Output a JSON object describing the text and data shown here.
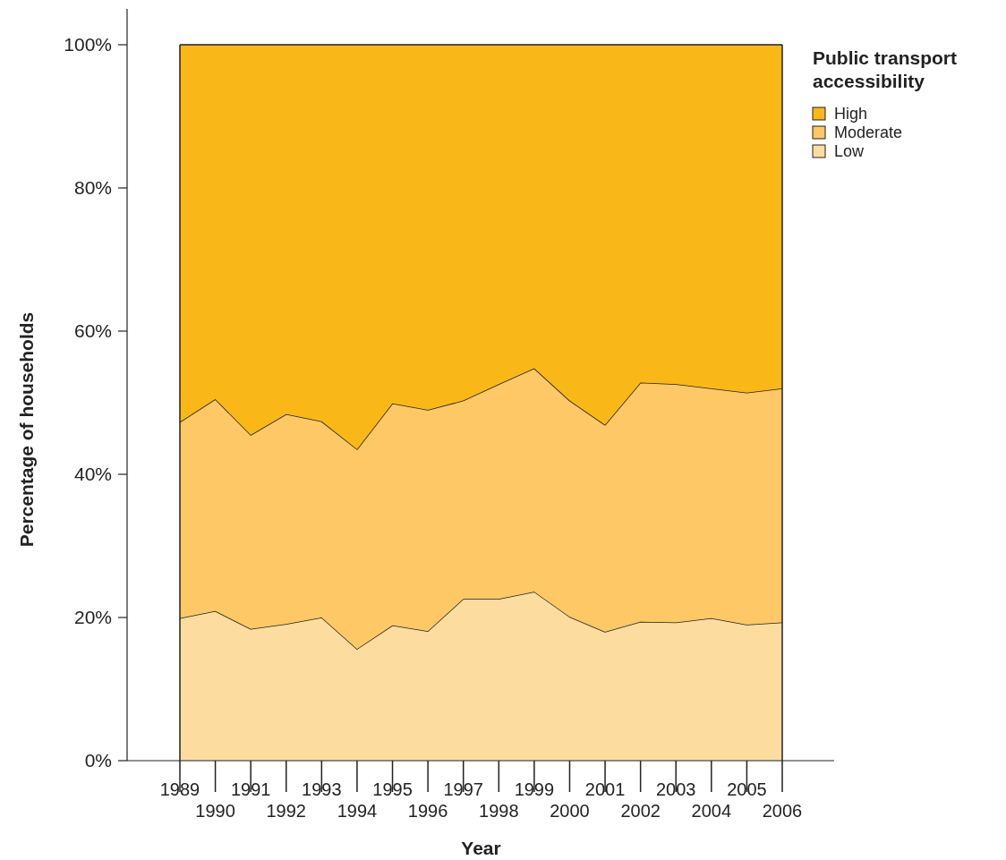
{
  "chart_data": {
    "type": "area",
    "stacked": true,
    "xlabel": "Year",
    "ylabel": "Percentage of households",
    "legend_title": "Public transport accessibility",
    "legend": "top right",
    "categories": [
      "1989",
      "1990",
      "1991",
      "1992",
      "1993",
      "1994",
      "1995",
      "1996",
      "1997",
      "1998",
      "1999",
      "2000",
      "2001",
      "2002",
      "2003",
      "2004",
      "2005",
      "2006"
    ],
    "series": [
      {
        "name": "Low",
        "color": "#fddca0",
        "values": [
          19.9,
          20.9,
          18.4,
          19.1,
          20.0,
          15.6,
          18.9,
          18.1,
          22.6,
          22.6,
          23.6,
          20.1,
          18.0,
          19.4,
          19.3,
          19.9,
          19.0,
          19.3
        ]
      },
      {
        "name": "Moderate",
        "color": "#fdc865",
        "values": [
          27.4,
          29.6,
          27.1,
          29.3,
          27.4,
          27.9,
          31.0,
          30.9,
          27.7,
          30.0,
          31.2,
          30.2,
          28.9,
          33.4,
          33.3,
          32.1,
          32.4,
          32.7
        ]
      },
      {
        "name": "High",
        "color": "#f9b818",
        "values": [
          52.7,
          49.5,
          54.5,
          51.6,
          52.6,
          56.5,
          50.1,
          51.0,
          49.7,
          47.4,
          45.2,
          49.7,
          53.1,
          47.2,
          47.4,
          48.0,
          48.6,
          48.0
        ]
      }
    ],
    "ylim": [
      0,
      100
    ],
    "yticks": [
      {
        "value": 0,
        "label": "0%"
      },
      {
        "value": 20,
        "label": "20%"
      },
      {
        "value": 40,
        "label": "40%"
      },
      {
        "value": 60,
        "label": "60%"
      },
      {
        "value": 80,
        "label": "80%"
      },
      {
        "value": 100,
        "label": "100%"
      }
    ],
    "grid": false
  }
}
